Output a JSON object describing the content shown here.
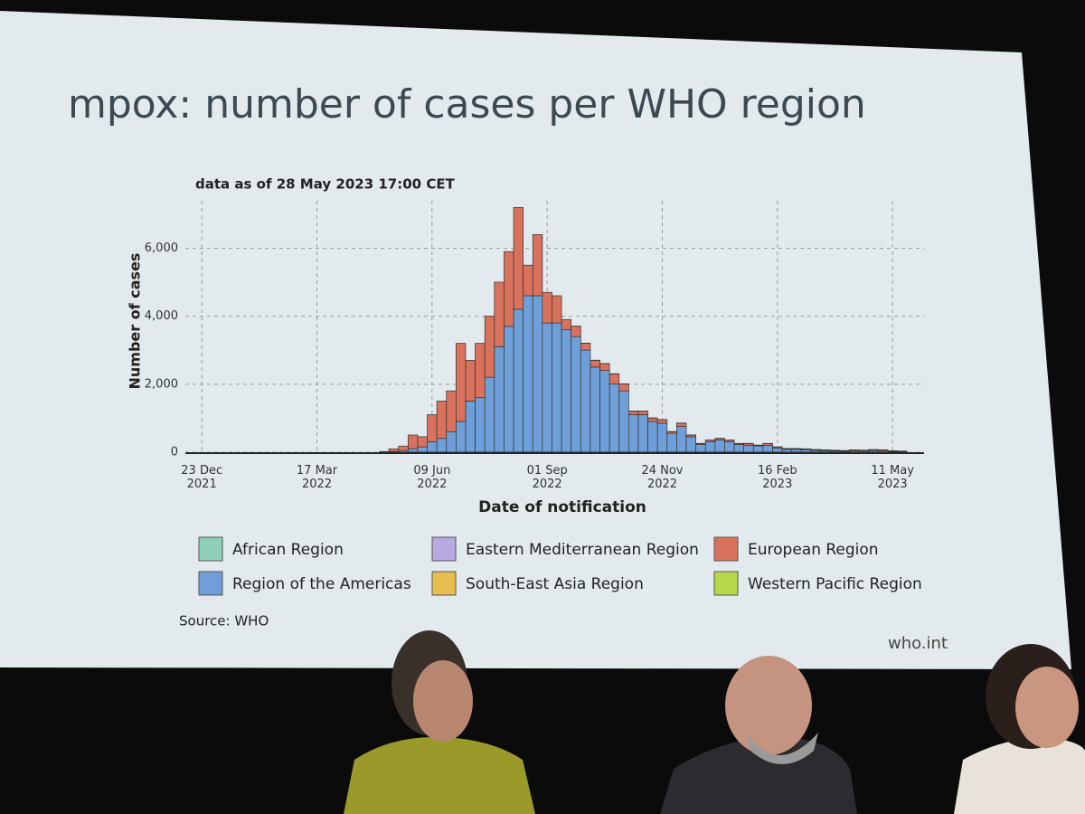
{
  "slide": {
    "title": "mpox: number of cases per WHO region",
    "footer": "who.int"
  },
  "chart_data": {
    "type": "bar",
    "stacked": true,
    "subtitle": "data as of 28 May 2023 17:00 CET",
    "x_label": "Date of notification",
    "y_label": "Number of cases",
    "source": "Source: WHO",
    "x": [
      "2022-05-05",
      "2022-05-12",
      "2022-05-19",
      "2022-05-26",
      "2022-06-02",
      "2022-06-09",
      "2022-06-16",
      "2022-06-23",
      "2022-06-30",
      "2022-07-07",
      "2022-07-14",
      "2022-07-21",
      "2022-07-28",
      "2022-08-04",
      "2022-08-11",
      "2022-08-18",
      "2022-08-25",
      "2022-09-01",
      "2022-09-08",
      "2022-09-15",
      "2022-09-22",
      "2022-09-29",
      "2022-10-06",
      "2022-10-13",
      "2022-10-20",
      "2022-10-27",
      "2022-11-03",
      "2022-11-10",
      "2022-11-17",
      "2022-11-24",
      "2022-12-01",
      "2022-12-08",
      "2022-12-15",
      "2022-12-22",
      "2022-12-29",
      "2023-01-05",
      "2023-01-12",
      "2023-01-19",
      "2023-01-26",
      "2023-02-02",
      "2023-02-09",
      "2023-02-16",
      "2023-02-23",
      "2023-03-02",
      "2023-03-09",
      "2023-03-16",
      "2023-03-23",
      "2023-03-30",
      "2023-04-06",
      "2023-04-13",
      "2023-04-20",
      "2023-04-27",
      "2023-05-04",
      "2023-05-11",
      "2023-05-18"
    ],
    "series": [
      {
        "name": "African Region",
        "color": "#8fd0b8",
        "values": [
          0,
          0,
          0,
          5,
          5,
          5,
          5,
          5,
          5,
          5,
          5,
          5,
          5,
          5,
          5,
          5,
          5,
          5,
          5,
          5,
          5,
          5,
          5,
          5,
          5,
          5,
          5,
          5,
          5,
          5,
          5,
          5,
          5,
          5,
          5,
          5,
          5,
          5,
          5,
          5,
          5,
          5,
          5,
          5,
          5,
          5,
          5,
          5,
          5,
          5,
          5,
          5,
          5,
          5,
          5
        ]
      },
      {
        "name": "Region of the Americas",
        "color": "#6f9fd8",
        "values": [
          5,
          20,
          40,
          100,
          150,
          300,
          400,
          600,
          900,
          1500,
          1600,
          2200,
          3100,
          3700,
          4200,
          4600,
          4600,
          3800,
          3800,
          3600,
          3400,
          3000,
          2500,
          2400,
          2000,
          1800,
          1100,
          1100,
          900,
          850,
          550,
          750,
          450,
          220,
          300,
          350,
          300,
          220,
          200,
          180,
          200,
          120,
          80,
          80,
          70,
          50,
          40,
          30,
          25,
          30,
          30,
          40,
          30,
          20,
          15
        ]
      },
      {
        "name": "Eastern Mediterranean Region",
        "color": "#b8a9e0",
        "values": [
          0,
          0,
          0,
          0,
          0,
          0,
          0,
          0,
          0,
          0,
          0,
          0,
          0,
          0,
          0,
          0,
          0,
          0,
          0,
          0,
          0,
          0,
          0,
          0,
          0,
          0,
          0,
          0,
          0,
          0,
          0,
          0,
          0,
          0,
          0,
          0,
          0,
          0,
          0,
          0,
          0,
          0,
          0,
          0,
          0,
          0,
          0,
          0,
          0,
          0,
          0,
          0,
          0,
          0,
          0
        ]
      },
      {
        "name": "European Region",
        "color": "#d9725d",
        "values": [
          15,
          80,
          140,
          400,
          300,
          800,
          1100,
          1200,
          2300,
          1200,
          1600,
          1800,
          1900,
          2200,
          3000,
          900,
          1800,
          900,
          800,
          300,
          300,
          200,
          200,
          200,
          300,
          200,
          100,
          100,
          100,
          100,
          50,
          100,
          50,
          30,
          50,
          50,
          50,
          30,
          50,
          20,
          50,
          30,
          20,
          20,
          20,
          20,
          20,
          20,
          15,
          30,
          20,
          30,
          30,
          15,
          10
        ]
      },
      {
        "name": "South-East Asia Region",
        "color": "#e8bd4f",
        "values": [
          0,
          0,
          0,
          0,
          0,
          0,
          0,
          0,
          0,
          0,
          0,
          0,
          0,
          0,
          0,
          0,
          0,
          0,
          0,
          0,
          0,
          0,
          0,
          0,
          0,
          0,
          0,
          0,
          0,
          0,
          0,
          0,
          0,
          0,
          0,
          0,
          0,
          0,
          0,
          0,
          0,
          0,
          0,
          0,
          0,
          0,
          0,
          0,
          0,
          0,
          0,
          0,
          0,
          0,
          0
        ]
      },
      {
        "name": "Western Pacific Region",
        "color": "#b8d84a",
        "values": [
          0,
          0,
          0,
          0,
          0,
          0,
          0,
          0,
          0,
          0,
          0,
          0,
          0,
          0,
          0,
          0,
          0,
          0,
          0,
          0,
          5,
          5,
          5,
          5,
          5,
          5,
          5,
          5,
          5,
          5,
          5,
          5,
          5,
          5,
          5,
          5,
          5,
          5,
          5,
          5,
          5,
          5,
          5,
          5,
          5,
          5,
          5,
          5,
          5,
          5,
          5,
          5,
          5,
          5,
          5
        ]
      }
    ],
    "xlim": [
      "2021-12-11",
      "2023-06-03"
    ],
    "xticks": [
      {
        "value": "2021-12-23",
        "label": "23 Dec 2021"
      },
      {
        "value": "2022-03-17",
        "label": "17 Mar 2022"
      },
      {
        "value": "2022-06-09",
        "label": "09 Jun 2022"
      },
      {
        "value": "2022-09-01",
        "label": "01 Sep 2022"
      },
      {
        "value": "2022-11-24",
        "label": "24 Nov 2022"
      },
      {
        "value": "2023-02-16",
        "label": "16 Feb 2023"
      },
      {
        "value": "2023-05-11",
        "label": "11 May 2023"
      }
    ],
    "ylim": [
      0,
      7400
    ],
    "yticks": [
      0,
      {
        "value": 2000,
        "label": "2,000"
      },
      {
        "value": 4000,
        "label": "4,000"
      },
      {
        "value": 6000,
        "label": "6,000"
      }
    ],
    "grid": true
  }
}
